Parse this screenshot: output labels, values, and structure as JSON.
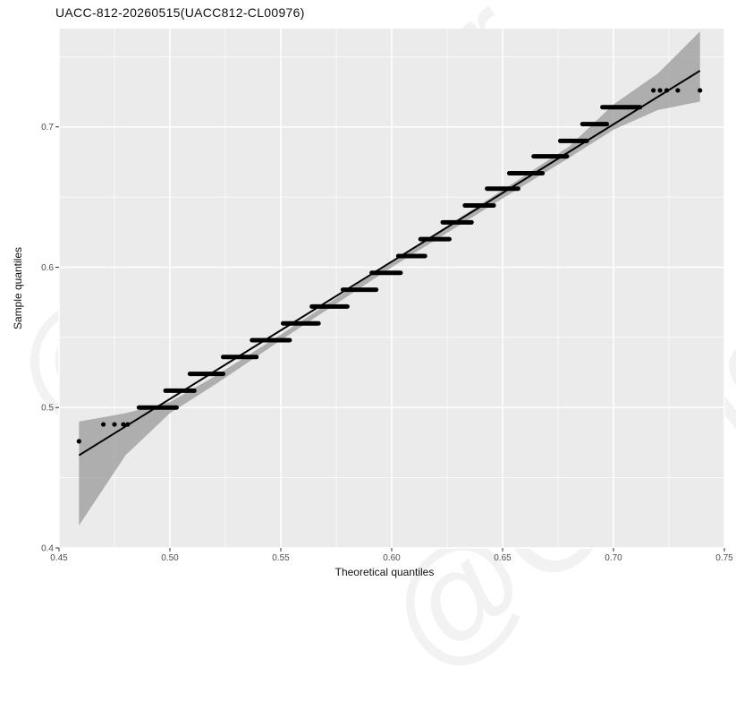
{
  "chart_data": {
    "type": "scatter",
    "title": "UACC-812-20260515(UACC812-CL00976)",
    "xlabel": "Theoretical quantiles",
    "ylabel": "Sample quantiles",
    "xlim": [
      0.45,
      0.75
    ],
    "ylim": [
      0.4,
      0.77
    ],
    "xticks": [
      0.45,
      0.5,
      0.55,
      0.6,
      0.65,
      0.7,
      0.75
    ],
    "xtick_labels": [
      "0.45",
      "0.50",
      "0.55",
      "0.60",
      "0.65",
      "0.70",
      "0.75"
    ],
    "yticks": [
      0.4,
      0.5,
      0.6,
      0.7
    ],
    "ytick_labels": [
      "0.4",
      "0.5",
      "0.6",
      "0.7"
    ],
    "grid": true,
    "background": "#ebebeb",
    "grid_color": "#ffffff",
    "point_color": "#000000",
    "band_color": "#999999",
    "watermark": "@Cobioer",
    "points": [
      {
        "x": 0.459,
        "y": 0.476
      },
      {
        "x": 0.47,
        "y": 0.488
      },
      {
        "x": 0.475,
        "y": 0.488
      },
      {
        "x": 0.479,
        "y": 0.488
      },
      {
        "x": 0.481,
        "y": 0.488
      },
      {
        "x": 0.718,
        "y": 0.726
      },
      {
        "x": 0.721,
        "y": 0.726
      },
      {
        "x": 0.724,
        "y": 0.726
      },
      {
        "x": 0.729,
        "y": 0.726
      },
      {
        "x": 0.739,
        "y": 0.726
      }
    ],
    "steps": [
      {
        "y": 0.5,
        "x_start": 0.486,
        "x_end": 0.503
      },
      {
        "y": 0.512,
        "x_start": 0.498,
        "x_end": 0.511
      },
      {
        "y": 0.524,
        "x_start": 0.509,
        "x_end": 0.524
      },
      {
        "y": 0.536,
        "x_start": 0.524,
        "x_end": 0.539
      },
      {
        "y": 0.548,
        "x_start": 0.537,
        "x_end": 0.554
      },
      {
        "y": 0.56,
        "x_start": 0.551,
        "x_end": 0.567
      },
      {
        "y": 0.572,
        "x_start": 0.564,
        "x_end": 0.58
      },
      {
        "y": 0.584,
        "x_start": 0.578,
        "x_end": 0.593
      },
      {
        "y": 0.596,
        "x_start": 0.591,
        "x_end": 0.604
      },
      {
        "y": 0.608,
        "x_start": 0.603,
        "x_end": 0.615
      },
      {
        "y": 0.62,
        "x_start": 0.613,
        "x_end": 0.626
      },
      {
        "y": 0.632,
        "x_start": 0.623,
        "x_end": 0.636
      },
      {
        "y": 0.644,
        "x_start": 0.633,
        "x_end": 0.646
      },
      {
        "y": 0.656,
        "x_start": 0.643,
        "x_end": 0.657
      },
      {
        "y": 0.667,
        "x_start": 0.653,
        "x_end": 0.668
      },
      {
        "y": 0.679,
        "x_start": 0.664,
        "x_end": 0.679
      },
      {
        "y": 0.69,
        "x_start": 0.676,
        "x_end": 0.688
      },
      {
        "y": 0.702,
        "x_start": 0.686,
        "x_end": 0.697
      },
      {
        "y": 0.714,
        "x_start": 0.695,
        "x_end": 0.712
      }
    ],
    "fit_line": {
      "x": [
        0.459,
        0.739
      ],
      "y": [
        0.466,
        0.74
      ]
    },
    "confidence_band": {
      "x": [
        0.459,
        0.48,
        0.5,
        0.52,
        0.55,
        0.6,
        0.65,
        0.68,
        0.7,
        0.72,
        0.739
      ],
      "upper": [
        0.49,
        0.496,
        0.504,
        0.522,
        0.552,
        0.604,
        0.655,
        0.686,
        0.716,
        0.738,
        0.768
      ],
      "lower": [
        0.416,
        0.466,
        0.496,
        0.516,
        0.548,
        0.6,
        0.649,
        0.678,
        0.698,
        0.712,
        0.718
      ]
    }
  }
}
